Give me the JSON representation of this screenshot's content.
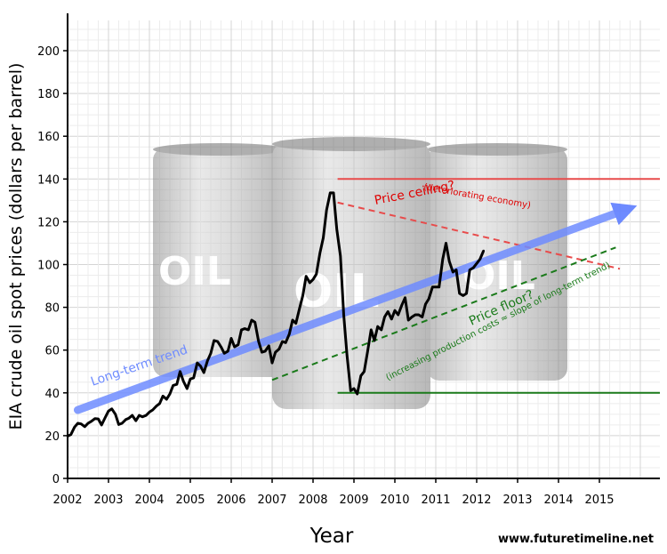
{
  "chart_data": {
    "type": "line",
    "title": "",
    "xlabel": "Year",
    "ylabel": "EIA crude oil spot prices (dollars per barrel)",
    "xlim": [
      2002,
      2016.1
    ],
    "ylim": [
      0,
      210
    ],
    "x_ticks": [
      "2002",
      "2003",
      "2004",
      "2005",
      "2006",
      "2007",
      "2008",
      "2009",
      "2010",
      "2011",
      "2012",
      "2013",
      "2014",
      "2015"
    ],
    "y_ticks": [
      "0",
      "20",
      "40",
      "60",
      "80",
      "100",
      "120",
      "140",
      "160",
      "180",
      "200"
    ],
    "grid": true,
    "series": [
      {
        "name": "",
        "color": "#000000",
        "points": [
          [
            2002.0,
            19.7
          ],
          [
            2002.08,
            20.5
          ],
          [
            2002.17,
            24.0
          ],
          [
            2002.25,
            25.8
          ],
          [
            2002.33,
            25.5
          ],
          [
            2002.42,
            24.2
          ],
          [
            2002.5,
            25.8
          ],
          [
            2002.58,
            26.7
          ],
          [
            2002.67,
            28.0
          ],
          [
            2002.75,
            27.8
          ],
          [
            2002.83,
            25.0
          ],
          [
            2002.92,
            28.5
          ],
          [
            2003.0,
            31.5
          ],
          [
            2003.08,
            32.5
          ],
          [
            2003.17,
            30.0
          ],
          [
            2003.25,
            25.2
          ],
          [
            2003.33,
            25.8
          ],
          [
            2003.42,
            27.5
          ],
          [
            2003.5,
            28.2
          ],
          [
            2003.58,
            29.5
          ],
          [
            2003.67,
            27.0
          ],
          [
            2003.75,
            29.5
          ],
          [
            2003.83,
            28.8
          ],
          [
            2003.92,
            29.5
          ],
          [
            2004.0,
            31.0
          ],
          [
            2004.08,
            32.0
          ],
          [
            2004.17,
            33.8
          ],
          [
            2004.25,
            35.0
          ],
          [
            2004.33,
            38.5
          ],
          [
            2004.42,
            37.0
          ],
          [
            2004.5,
            39.5
          ],
          [
            2004.58,
            43.5
          ],
          [
            2004.67,
            44.0
          ],
          [
            2004.75,
            50.0
          ],
          [
            2004.83,
            45.5
          ],
          [
            2004.92,
            42.0
          ],
          [
            2005.0,
            46.5
          ],
          [
            2005.08,
            47.0
          ],
          [
            2005.17,
            54.0
          ],
          [
            2005.25,
            52.5
          ],
          [
            2005.33,
            49.5
          ],
          [
            2005.42,
            55.0
          ],
          [
            2005.5,
            58.5
          ],
          [
            2005.58,
            64.5
          ],
          [
            2005.67,
            64.0
          ],
          [
            2005.75,
            61.5
          ],
          [
            2005.83,
            58.5
          ],
          [
            2005.92,
            59.5
          ],
          [
            2006.0,
            65.5
          ],
          [
            2006.08,
            61.5
          ],
          [
            2006.17,
            62.5
          ],
          [
            2006.25,
            69.5
          ],
          [
            2006.33,
            70.0
          ],
          [
            2006.42,
            69.5
          ],
          [
            2006.5,
            74.0
          ],
          [
            2006.58,
            73.0
          ],
          [
            2006.67,
            64.0
          ],
          [
            2006.75,
            59.0
          ],
          [
            2006.83,
            59.5
          ],
          [
            2006.92,
            62.0
          ],
          [
            2007.0,
            54.0
          ],
          [
            2007.08,
            59.0
          ],
          [
            2007.17,
            60.5
          ],
          [
            2007.25,
            64.0
          ],
          [
            2007.33,
            63.5
          ],
          [
            2007.42,
            67.5
          ],
          [
            2007.5,
            74.0
          ],
          [
            2007.58,
            72.5
          ],
          [
            2007.67,
            79.5
          ],
          [
            2007.75,
            85.5
          ],
          [
            2007.83,
            94.5
          ],
          [
            2007.92,
            91.5
          ],
          [
            2008.0,
            93.0
          ],
          [
            2008.08,
            95.5
          ],
          [
            2008.17,
            105.5
          ],
          [
            2008.25,
            112.5
          ],
          [
            2008.33,
            125.5
          ],
          [
            2008.42,
            133.5
          ],
          [
            2008.5,
            133.5
          ],
          [
            2008.58,
            116.5
          ],
          [
            2008.67,
            104.0
          ],
          [
            2008.75,
            76.5
          ],
          [
            2008.83,
            57.5
          ],
          [
            2008.92,
            41.0
          ],
          [
            2009.0,
            42.0
          ],
          [
            2009.08,
            39.5
          ],
          [
            2009.17,
            48.0
          ],
          [
            2009.25,
            50.0
          ],
          [
            2009.33,
            59.0
          ],
          [
            2009.42,
            69.5
          ],
          [
            2009.5,
            64.5
          ],
          [
            2009.58,
            71.0
          ],
          [
            2009.67,
            69.5
          ],
          [
            2009.75,
            75.5
          ],
          [
            2009.83,
            78.0
          ],
          [
            2009.92,
            74.5
          ],
          [
            2010.0,
            78.5
          ],
          [
            2010.08,
            76.5
          ],
          [
            2010.17,
            81.0
          ],
          [
            2010.25,
            84.5
          ],
          [
            2010.33,
            74.0
          ],
          [
            2010.42,
            75.5
          ],
          [
            2010.5,
            76.5
          ],
          [
            2010.58,
            76.5
          ],
          [
            2010.67,
            75.5
          ],
          [
            2010.75,
            81.5
          ],
          [
            2010.83,
            84.0
          ],
          [
            2010.92,
            89.5
          ],
          [
            2011.0,
            89.5
          ],
          [
            2011.08,
            89.5
          ],
          [
            2011.17,
            102.5
          ],
          [
            2011.25,
            110.0
          ],
          [
            2011.33,
            101.5
          ],
          [
            2011.42,
            96.5
          ],
          [
            2011.5,
            97.5
          ],
          [
            2011.58,
            86.5
          ],
          [
            2011.67,
            85.5
          ],
          [
            2011.75,
            86.5
          ],
          [
            2011.83,
            97.5
          ],
          [
            2011.92,
            98.5
          ],
          [
            2012.0,
            100.5
          ],
          [
            2012.08,
            102.5
          ],
          [
            2012.17,
            106.5
          ]
        ]
      }
    ],
    "annotations": {
      "long_term_trend": "Long-term trend",
      "price_ceiling": "Price ceiling?",
      "price_ceiling_note": "(deteriorating economy)",
      "price_floor": "Price floor?",
      "price_floor_note": "(increasing production costs ≈ slope of long-term trend)",
      "barrel_label": "OIL"
    },
    "reference_lines": {
      "ceiling_level": 140,
      "floor_level": 40,
      "ceiling_color": "#e84b4b",
      "floor_color": "#1a7a1a",
      "trend_color": "#6f8cff"
    }
  },
  "credit": "www.futuretimeline.net"
}
